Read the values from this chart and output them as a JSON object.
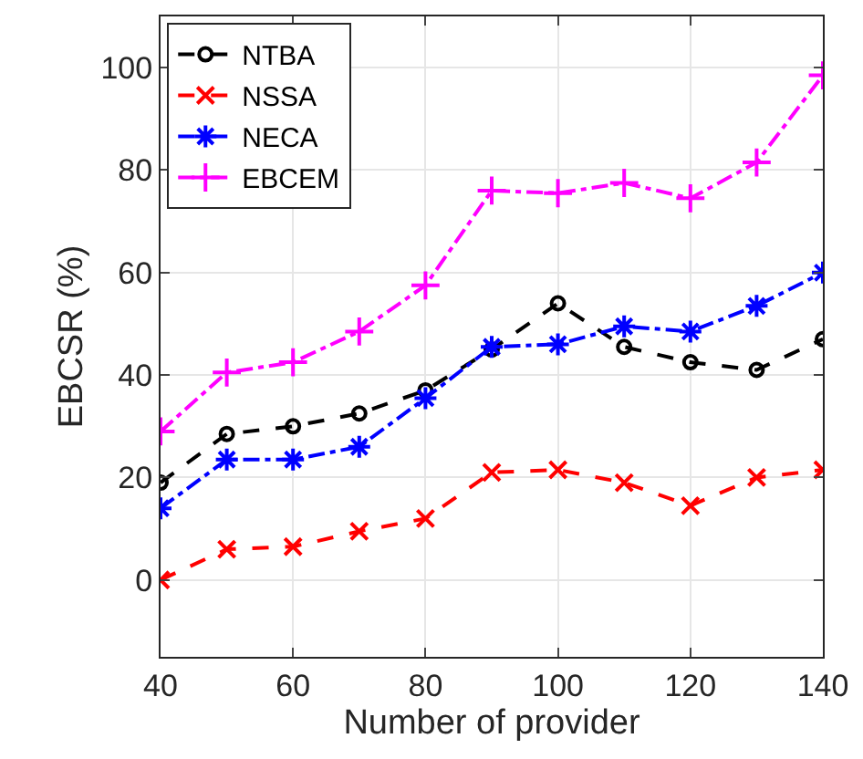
{
  "chart_data": {
    "type": "line",
    "xlabel": "Number of provider",
    "ylabel": "EBCSR (%)",
    "x": [
      40,
      50,
      60,
      70,
      80,
      90,
      100,
      110,
      120,
      130,
      140
    ],
    "series": [
      {
        "name": "NTBA",
        "color": "#000000",
        "marker": "circle",
        "line_style": "dashed",
        "values": [
          19,
          28.5,
          30,
          32.5,
          37,
          45,
          54,
          45.5,
          42.5,
          41,
          47
        ]
      },
      {
        "name": "NSSA",
        "color": "#ff0000",
        "marker": "x",
        "line_style": "dashed",
        "values": [
          0,
          6,
          6.5,
          9.5,
          12,
          21,
          21.5,
          19,
          14.5,
          20,
          21.5
        ]
      },
      {
        "name": "NECA",
        "color": "#0000ff",
        "marker": "cross",
        "line_style": "dashdot",
        "values": [
          14,
          23.5,
          23.5,
          26,
          35.5,
          45.5,
          46,
          49.5,
          48.5,
          53.5,
          60
        ]
      },
      {
        "name": "EBCEM",
        "color": "#ff00ff",
        "marker": "plus",
        "line_style": "dashdot",
        "values": [
          29,
          40.5,
          42.5,
          48.5,
          57.5,
          76,
          75.5,
          77.5,
          74.5,
          81.5,
          98.5
        ]
      }
    ],
    "xlim": [
      40,
      140
    ],
    "xticks": [
      40,
      60,
      80,
      100,
      120,
      140
    ],
    "ylim": [
      -15,
      110
    ],
    "yticks": [
      0,
      20,
      40,
      60,
      80,
      100
    ],
    "grid": true,
    "legend": "top left"
  }
}
